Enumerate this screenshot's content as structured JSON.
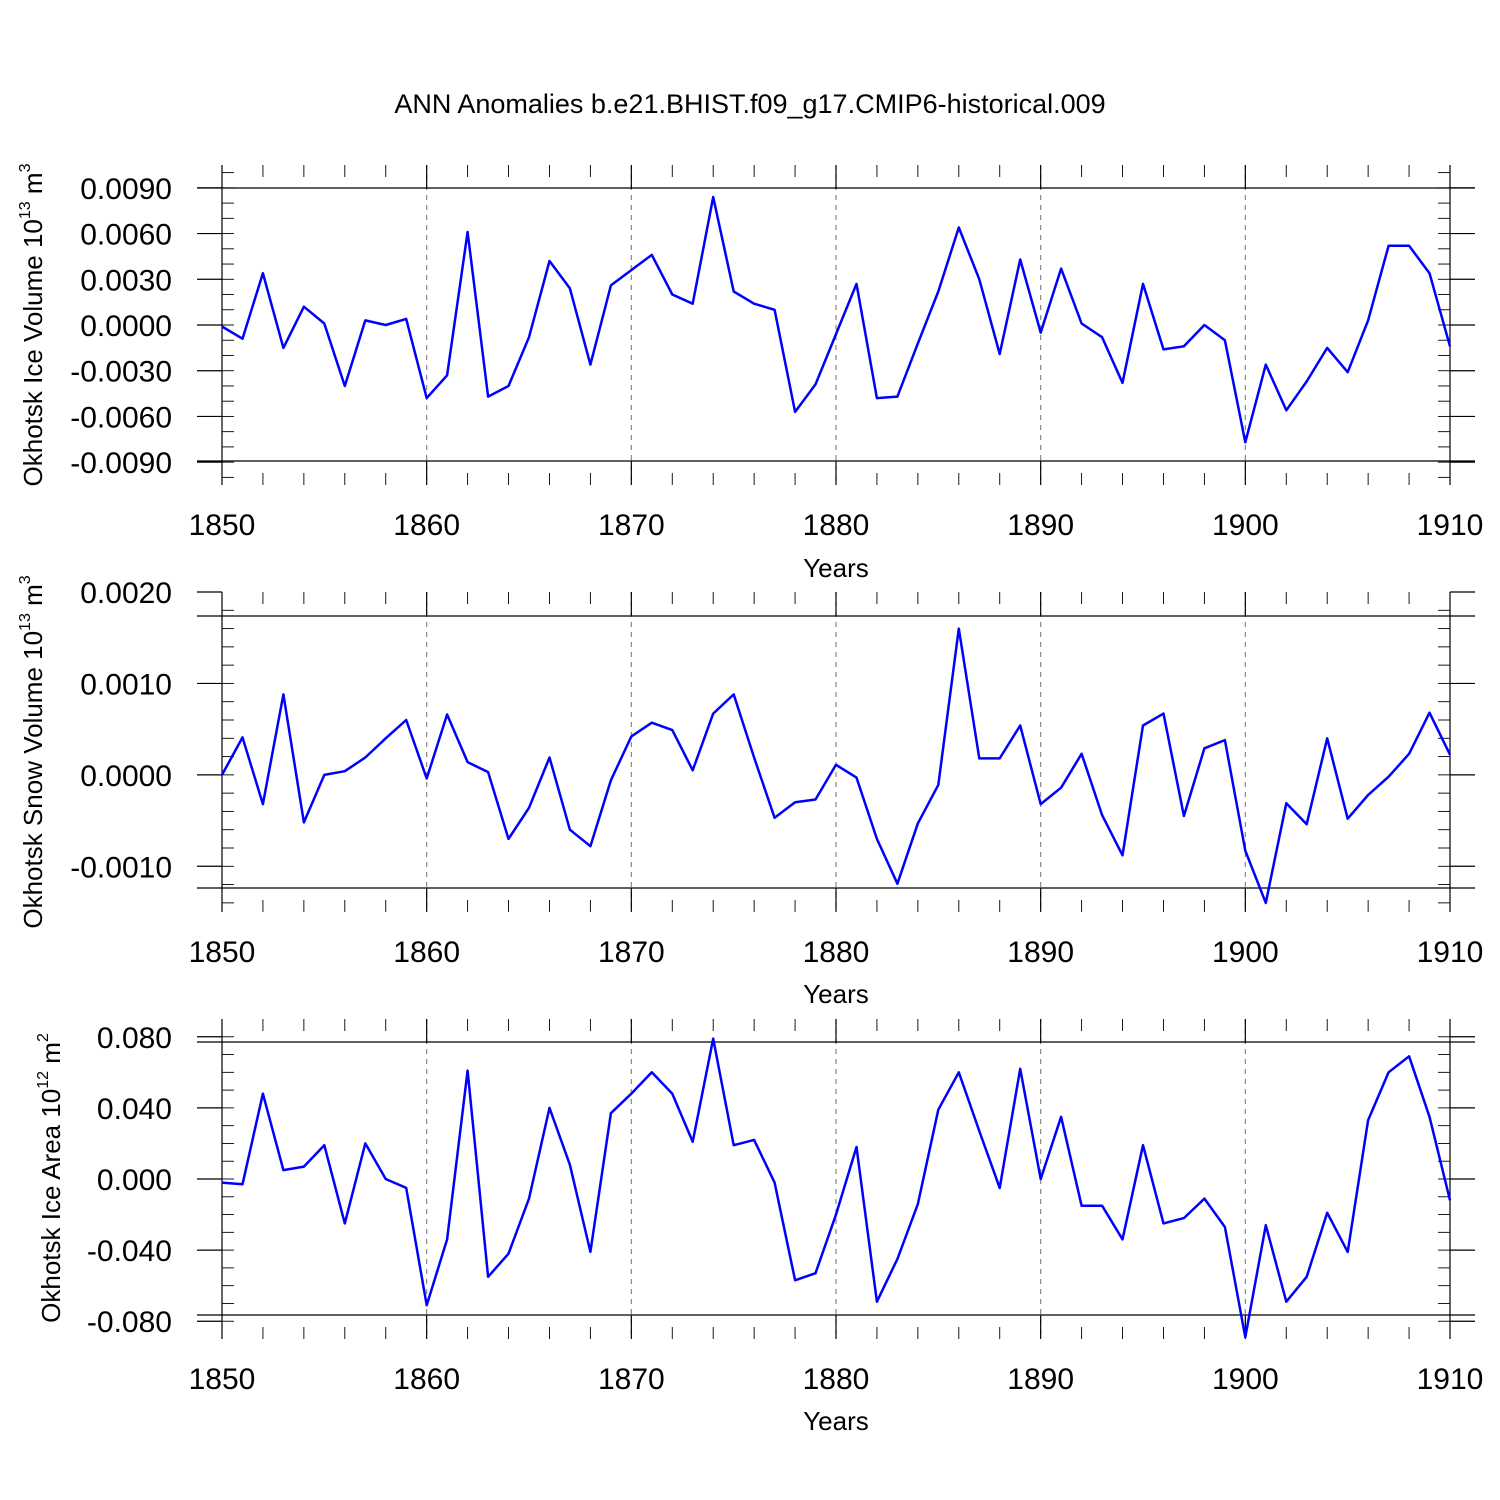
{
  "title": "ANN Anomalies b.e21.BHIST.f09_g17.CMIP6-historical.009",
  "colors": {
    "line": "#0000ff",
    "axis": "#000000",
    "grid": "#888888"
  },
  "chart_data": [
    {
      "type": "line",
      "xlabel": "Years",
      "ylabel": "Okhotsk Ice Volume 10",
      "ylabel_exp": "13",
      "ylabel_unit": "m",
      "ylabel_unit_exp": "3",
      "xlim": [
        1850,
        1910
      ],
      "ylim": [
        -0.0105,
        0.0105
      ],
      "x_ticks": [
        1850,
        1860,
        1870,
        1880,
        1890,
        1900,
        1910
      ],
      "x_tick_labels": [
        "1850",
        "1860",
        "1870",
        "1880",
        "1890",
        "1900",
        "1910"
      ],
      "grid_x": [
        1860,
        1870,
        1880,
        1890,
        1900
      ],
      "y_ticks": [
        0.009,
        0.006,
        0.003,
        0.0,
        -0.003,
        -0.006,
        -0.009
      ],
      "y_tick_labels": [
        "0.0090",
        "0.0060",
        "0.0030",
        "0.0000",
        "-0.0030",
        "-0.0060",
        "-0.0090"
      ],
      "y_minor": 0.001,
      "x_start": 1850,
      "values": [
        -0.0001,
        -0.0009,
        0.0034,
        -0.0015,
        0.0012,
        0.0001,
        -0.004,
        0.0003,
        0.0,
        0.0004,
        -0.0048,
        -0.0033,
        0.0061,
        -0.0047,
        -0.004,
        -0.0008,
        0.0042,
        0.0024,
        -0.0026,
        0.0026,
        0.0036,
        0.0046,
        0.002,
        0.0014,
        0.0084,
        0.0022,
        0.0014,
        0.001,
        -0.0057,
        -0.0039,
        -0.0006,
        0.0027,
        -0.0048,
        -0.0047,
        -0.0012,
        0.0022,
        0.0064,
        0.003,
        -0.0019,
        0.0043,
        -0.0005,
        0.0037,
        0.0001,
        -0.0008,
        -0.0038,
        0.0027,
        -0.0016,
        -0.0014,
        0.0,
        -0.001,
        -0.0077,
        -0.0026,
        -0.0056,
        -0.0037,
        -0.0015,
        -0.0031,
        0.0003,
        0.0052,
        0.0052,
        0.0034,
        -0.0014
      ]
    },
    {
      "type": "line",
      "xlabel": "Years",
      "ylabel": "Okhotsk Snow Volume 10",
      "ylabel_exp": "13",
      "ylabel_unit": "m",
      "ylabel_unit_exp": "3",
      "xlim": [
        1850,
        1910
      ],
      "ylim": [
        -0.0015,
        0.002
      ],
      "x_ticks": [
        1850,
        1860,
        1870,
        1880,
        1890,
        1900,
        1910
      ],
      "x_tick_labels": [
        "1850",
        "1860",
        "1870",
        "1880",
        "1890",
        "1900",
        "1910"
      ],
      "grid_x": [
        1860,
        1870,
        1880,
        1890,
        1900
      ],
      "y_ticks": [
        0.002,
        0.001,
        0.0,
        -0.001
      ],
      "y_tick_labels": [
        "0.0020",
        "0.0010",
        "0.0000",
        "-0.0010"
      ],
      "y_minor": 0.0002,
      "x_start": 1850,
      "values": [
        0.0,
        0.00041,
        -0.00032,
        0.00088,
        -0.00052,
        0.0,
        4e-05,
        0.00019,
        0.0004,
        0.0006,
        -4e-05,
        0.00066,
        0.00014,
        3e-05,
        -0.0007,
        -0.00036,
        0.00019,
        -0.0006,
        -0.00078,
        -6e-05,
        0.00042,
        0.00057,
        0.00049,
        5e-05,
        0.00067,
        0.00088,
        0.00019,
        -0.00047,
        -0.0003,
        -0.00027,
        0.00011,
        -3e-05,
        -0.0007,
        -0.00119,
        -0.00053,
        -0.00011,
        0.0016,
        0.00018,
        0.00018,
        0.00054,
        -0.00032,
        -0.00014,
        0.00023,
        -0.00044,
        -0.00088,
        0.00054,
        0.00067,
        -0.00045,
        0.00029,
        0.00038,
        -0.00083,
        -0.0014,
        -0.00031,
        -0.00054,
        0.0004,
        -0.00048,
        -0.00022,
        -2e-05,
        0.00023,
        0.00068,
        0.00022
      ]
    },
    {
      "type": "line",
      "xlabel": "Years",
      "ylabel": "Okhotsk Ice Area 10",
      "ylabel_exp": "12",
      "ylabel_unit": "m",
      "ylabel_unit_exp": "2",
      "xlim": [
        1850,
        1910
      ],
      "ylim": [
        -0.09,
        0.09
      ],
      "x_ticks": [
        1850,
        1860,
        1870,
        1880,
        1890,
        1900,
        1910
      ],
      "x_tick_labels": [
        "1850",
        "1860",
        "1870",
        "1880",
        "1890",
        "1900",
        "1910"
      ],
      "grid_x": [
        1860,
        1870,
        1880,
        1890,
        1900
      ],
      "y_ticks": [
        0.08,
        0.04,
        0.0,
        -0.04,
        -0.08
      ],
      "y_tick_labels": [
        "0.080",
        "0.040",
        "0.000",
        "-0.040",
        "-0.080"
      ],
      "y_minor": 0.01,
      "x_start": 1850,
      "values": [
        -0.002,
        -0.003,
        0.048,
        0.005,
        0.007,
        0.019,
        -0.025,
        0.02,
        0.0,
        -0.005,
        -0.071,
        -0.034,
        0.061,
        -0.055,
        -0.042,
        -0.011,
        0.04,
        0.008,
        -0.041,
        0.037,
        0.048,
        0.06,
        0.048,
        0.021,
        0.079,
        0.019,
        0.022,
        -0.002,
        -0.057,
        -0.053,
        -0.02,
        0.018,
        -0.069,
        -0.045,
        -0.014,
        0.039,
        0.06,
        0.027,
        -0.005,
        0.062,
        0.0,
        0.035,
        -0.015,
        -0.015,
        -0.034,
        0.019,
        -0.025,
        -0.022,
        -0.011,
        -0.027,
        -0.089,
        -0.026,
        -0.069,
        -0.055,
        -0.019,
        -0.041,
        0.033,
        0.06,
        0.069,
        0.035,
        -0.012
      ]
    }
  ]
}
